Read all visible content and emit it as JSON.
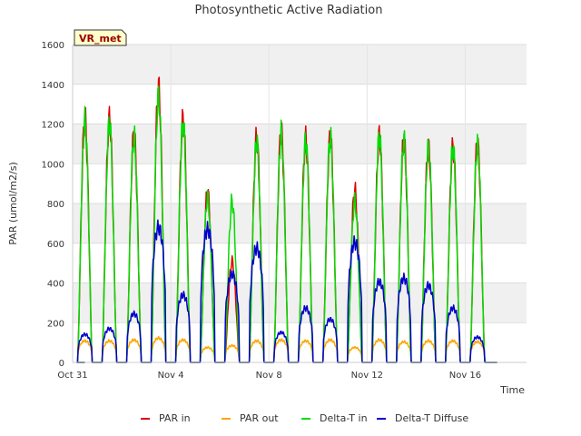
{
  "chart_data": {
    "type": "line",
    "title": "Photosynthetic Active Radiation",
    "xlabel": "Time",
    "ylabel": "PAR (umol/m2/s)",
    "site_label": "VR_met",
    "ylim": [
      0,
      1600
    ],
    "xlim": [
      0,
      18.5
    ],
    "yticks": [
      0,
      200,
      400,
      600,
      800,
      1000,
      1200,
      1400,
      1600
    ],
    "xticks": [
      {
        "value": 0,
        "label": "Oct 31"
      },
      {
        "value": 4,
        "label": "Nov 4"
      },
      {
        "value": 8,
        "label": "Nov 8"
      },
      {
        "value": 12,
        "label": "Nov 12"
      },
      {
        "value": 16,
        "label": "Nov 16"
      }
    ],
    "grid": true,
    "legend_position": "bottom",
    "x_unit": "days since Oct 31 00:00",
    "days": [
      0.5,
      1.5,
      2.5,
      3.5,
      4.5,
      5.5,
      6.5,
      7.5,
      8.5,
      9.5,
      10.5,
      11.5,
      12.5,
      13.5,
      14.5,
      15.5,
      16.5
    ],
    "series": [
      {
        "name": "PAR in",
        "color": "#dd0000",
        "daily_peak": [
          1300,
          1300,
          1220,
          1470,
          1300,
          910,
          540,
          1200,
          1230,
          1190,
          1200,
          920,
          1210,
          1190,
          1150,
          1150,
          1170
        ]
      },
      {
        "name": "PAR out",
        "color": "#ffa500",
        "daily_peak": [
          115,
          115,
          120,
          130,
          120,
          80,
          90,
          115,
          120,
          115,
          120,
          80,
          120,
          110,
          115,
          115,
          110
        ]
      },
      {
        "name": "Delta-T in",
        "color": "#00dd00",
        "daily_peak": [
          1290,
          1280,
          1210,
          1420,
          1280,
          880,
          860,
          1180,
          1220,
          1180,
          1200,
          860,
          1210,
          1190,
          1150,
          1150,
          1160
        ]
      },
      {
        "name": "Delta-T Diffuse",
        "color": "#0000cc",
        "daily_peak": [
          150,
          180,
          260,
          720,
          360,
          710,
          470,
          610,
          160,
          290,
          230,
          640,
          430,
          450,
          410,
          290,
          135
        ]
      }
    ]
  }
}
